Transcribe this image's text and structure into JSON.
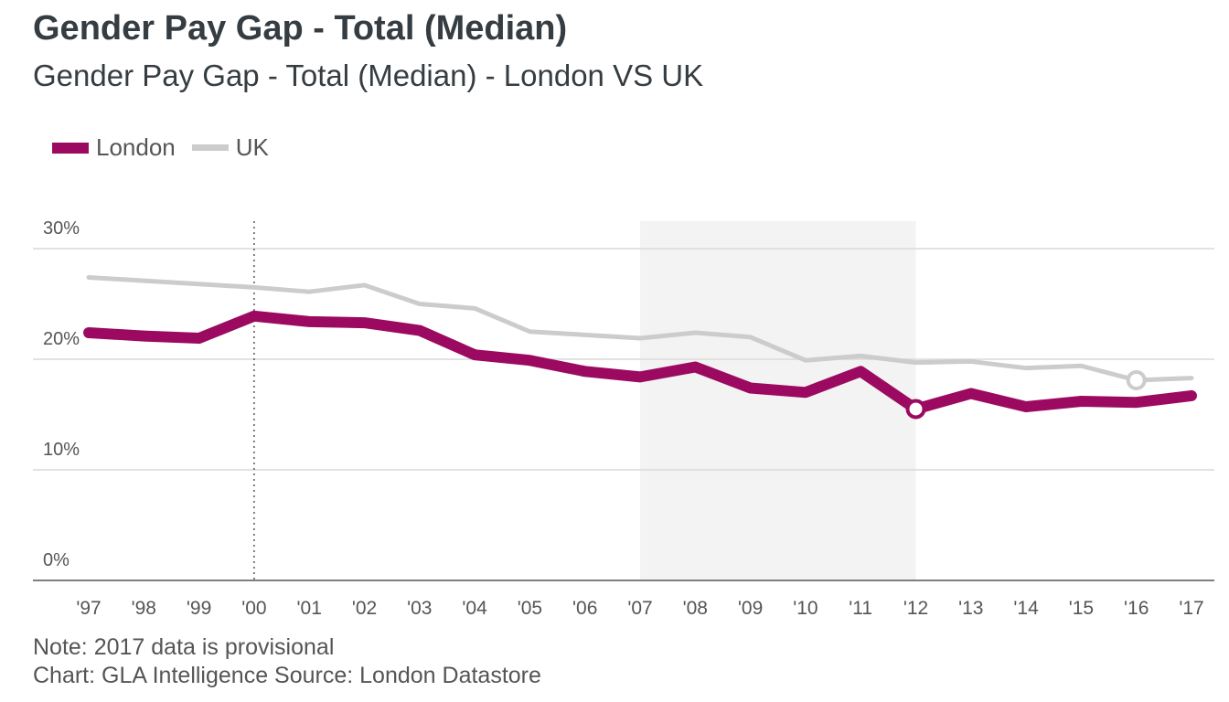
{
  "title": "Gender Pay Gap - Total (Median)",
  "subtitle": "Gender Pay Gap - Total (Median) - London VS UK",
  "legend": [
    {
      "label": "London",
      "color": "#9b0a60"
    },
    {
      "label": "UK",
      "color": "#cccccc"
    }
  ],
  "footer": {
    "note": "Note: 2017 data is provisional",
    "credit": "Chart: GLA Intelligence  Source: London Datastore"
  },
  "chart_data": {
    "type": "line",
    "title": "Gender Pay Gap - Total (Median)",
    "xlabel": "",
    "ylabel": "",
    "x": [
      "'97",
      "'98",
      "'99",
      "'00",
      "'01",
      "'02",
      "'03",
      "'04",
      "'05",
      "'06",
      "'07",
      "'08",
      "'09",
      "'10",
      "'11",
      "'12",
      "'13",
      "'14",
      "'15",
      "'16",
      "'17"
    ],
    "series": [
      {
        "name": "London",
        "color": "#9b0a60",
        "values": [
          22.4,
          22.1,
          21.9,
          23.9,
          23.4,
          23.3,
          22.6,
          20.4,
          19.9,
          18.9,
          18.4,
          19.3,
          17.4,
          17.0,
          18.9,
          15.5,
          16.9,
          15.7,
          16.2,
          16.1,
          16.7
        ]
      },
      {
        "name": "UK",
        "color": "#cccccc",
        "values": [
          27.4,
          27.1,
          26.8,
          26.5,
          26.1,
          26.7,
          25.0,
          24.6,
          22.5,
          22.2,
          21.9,
          22.4,
          22.0,
          19.9,
          20.3,
          19.7,
          19.8,
          19.2,
          19.4,
          18.1,
          18.3
        ]
      }
    ],
    "yticks": [
      0,
      10,
      20,
      30
    ],
    "ytick_labels": [
      "0%",
      "10%",
      "20%",
      "30%"
    ],
    "ylim": [
      0,
      30
    ],
    "grid": true,
    "shaded_region": {
      "from": "'07",
      "to": "'12"
    },
    "vertical_marker": "'00",
    "highlight_points": [
      {
        "series": "London",
        "x": "'12"
      },
      {
        "series": "UK",
        "x": "'16"
      }
    ],
    "legend_position": "top-left"
  }
}
